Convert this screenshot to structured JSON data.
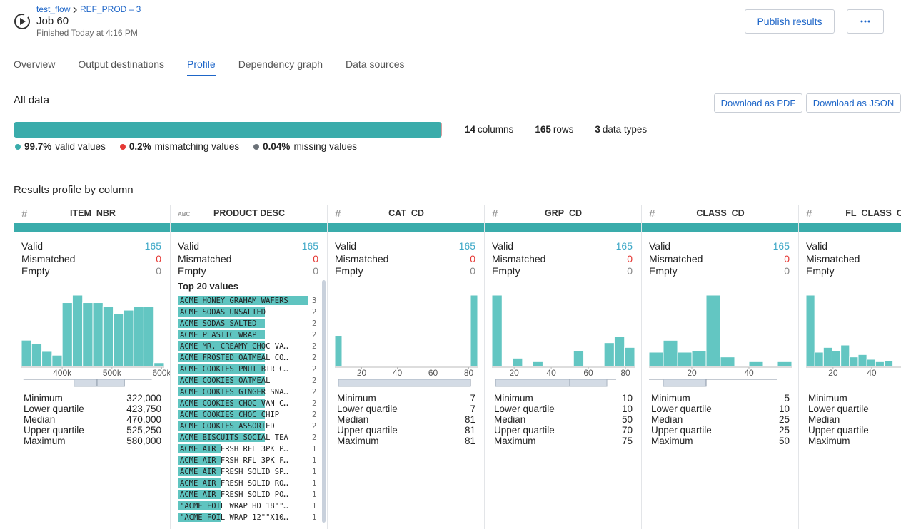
{
  "header": {
    "breadcrumb": [
      "test_flow",
      "REF_PROD – 3"
    ],
    "title": "Job 60",
    "subtitle": "Finished Today at 4:16 PM",
    "publish_button": "Publish results"
  },
  "tabs": {
    "items": [
      "Overview",
      "Output destinations",
      "Profile",
      "Dependency graph",
      "Data sources"
    ],
    "active": 2
  },
  "all_data": {
    "title": "All data",
    "buttons": [
      "Download as PDF",
      "Download as JSON"
    ],
    "quality": [
      {
        "value": 99.7,
        "label": "99.7%",
        "text": "valid values",
        "color": "#3aacab"
      },
      {
        "value": 0.2,
        "label": "0.2%",
        "text": "mismatching values",
        "color": "#e53935"
      },
      {
        "value": 0.04,
        "label": "0.04%",
        "text": "missing values",
        "color": "#6b7178"
      }
    ],
    "counts": [
      {
        "value": 14,
        "text": "columns"
      },
      {
        "value": 165,
        "text": "rows"
      },
      {
        "value": 3,
        "text": "data types"
      }
    ]
  },
  "profile": {
    "title": "Results profile by column",
    "columns": [
      {
        "name": "ITEM_NBR",
        "type_icon": "#",
        "quality": [
          {
            "label": "Valid",
            "value": 165
          },
          {
            "label": "Mismatched",
            "value": 0
          },
          {
            "label": "Empty",
            "value": 0
          }
        ],
        "histogram": {
          "xlim": [
            318000,
            605000
          ],
          "xticks": [
            {
              "value": 400000,
              "label": "400k"
            },
            {
              "value": 500000,
              "label": "500k"
            },
            {
              "value": 600000,
              "label": "600k"
            }
          ],
          "bins": [
            318000,
            338500,
            359000,
            379500,
            400000,
            420500,
            441000,
            461500,
            482000,
            502500,
            523000,
            543500,
            564000,
            584500,
            605000
          ],
          "counts": [
            7,
            6,
            4,
            3,
            17,
            19,
            17,
            17,
            16,
            14,
            15,
            16,
            16,
            1
          ]
        },
        "stats": {
          "labels": [
            "Minimum",
            "Lower quartile",
            "Median",
            "Upper quartile",
            "Maximum"
          ],
          "values": [
            {
              "value": 322000,
              "label": "322,000"
            },
            {
              "value": 423750,
              "label": "423,750"
            },
            {
              "value": 470000,
              "label": "470,000"
            },
            {
              "value": 525250,
              "label": "525,250"
            },
            {
              "value": 580000,
              "label": "580,000"
            }
          ]
        }
      },
      {
        "name": "PRODUCT DESC",
        "type_icon": "ABC",
        "quality": [
          {
            "label": "Valid",
            "value": 165
          },
          {
            "label": "Mismatched",
            "value": 0
          },
          {
            "label": "Empty",
            "value": 0
          }
        ],
        "top_values": {
          "title": "Top 20 values",
          "items": [
            {
              "text": "ACME HONEY GRAHAM WAFERS",
              "count": 3
            },
            {
              "text": "ACME SODAS UNSALTED",
              "count": 2
            },
            {
              "text": "ACME SODAS SALTED",
              "count": 2
            },
            {
              "text": "ACME PLASTIC WRAP",
              "count": 2
            },
            {
              "text": "ACME MR. CREAMY CHOC VA…",
              "count": 2
            },
            {
              "text": "ACME FROSTED OATMEAL CO…",
              "count": 2
            },
            {
              "text": "ACME COOKIES PNUT BTR C…",
              "count": 2
            },
            {
              "text": "ACME COOKIES OATMEAL",
              "count": 2
            },
            {
              "text": "ACME COOKIES GINGER SNA…",
              "count": 2
            },
            {
              "text": "ACME COOKIES CHOC VAN C…",
              "count": 2
            },
            {
              "text": "ACME COOKIES CHOC CHIP",
              "count": 2
            },
            {
              "text": "ACME COOKIES ASSORTED",
              "count": 2
            },
            {
              "text": "ACME BISCUITS SOCIAL TEA",
              "count": 2
            },
            {
              "text": "ACME AIR FRSH RFL 3PK P…",
              "count": 1
            },
            {
              "text": "ACME AIR FRSH RFL 3PK F…",
              "count": 1
            },
            {
              "text": "ACME AIR FRESH SOLID SP…",
              "count": 1
            },
            {
              "text": "ACME AIR FRESH SOLID RO…",
              "count": 1
            },
            {
              "text": "ACME AIR FRESH SOLID PO…",
              "count": 1
            },
            {
              "text": "\"ACME FOIL WRAP HD 18\"\"…",
              "count": 1
            },
            {
              "text": "\"ACME FOIL WRAP 12\"\"X10…",
              "count": 1
            }
          ]
        }
      },
      {
        "name": "CAT_CD",
        "type_icon": "#",
        "quality": [
          {
            "label": "Valid",
            "value": 165
          },
          {
            "label": "Mismatched",
            "value": 0
          },
          {
            "label": "Empty",
            "value": 0
          }
        ],
        "histogram": {
          "xlim": [
            5,
            85
          ],
          "xticks": [
            20,
            40,
            60,
            80
          ],
          "bins": [
            5,
            9,
            13,
            17,
            21,
            25,
            29,
            33,
            37,
            41,
            45,
            49,
            53,
            57,
            61,
            65,
            69,
            73,
            77,
            81,
            85
          ],
          "counts": [
            50,
            0,
            0,
            0,
            0,
            0,
            0,
            0,
            0,
            0,
            0,
            0,
            0,
            0,
            0,
            0,
            0,
            0,
            0,
            115
          ]
        },
        "stats": {
          "labels": [
            "Minimum",
            "Lower quartile",
            "Median",
            "Upper quartile",
            "Maximum"
          ],
          "values": [
            7,
            7,
            81,
            81,
            81
          ]
        }
      },
      {
        "name": "GRP_CD",
        "type_icon": "#",
        "quality": [
          {
            "label": "Valid",
            "value": 165
          },
          {
            "label": "Mismatched",
            "value": 0
          },
          {
            "label": "Empty",
            "value": 0
          }
        ],
        "histogram": {
          "xlim": [
            8,
            85
          ],
          "xticks": [
            20,
            40,
            60,
            80
          ],
          "bins": [
            8,
            13.5,
            19,
            24.5,
            30,
            35.5,
            41,
            46.5,
            52,
            57.5,
            63,
            68.5,
            74,
            79.5,
            85
          ],
          "counts": [
            60,
            0,
            7,
            0,
            4,
            0,
            0,
            0,
            13,
            0,
            0,
            20,
            25,
            16
          ]
        },
        "stats": {
          "labels": [
            "Minimum",
            "Lower quartile",
            "Median",
            "Upper quartile",
            "Maximum"
          ],
          "values": [
            10,
            10,
            50,
            70,
            75
          ]
        }
      },
      {
        "name": "CLASS_CD",
        "type_icon": "#",
        "quality": [
          {
            "label": "Valid",
            "value": 165
          },
          {
            "label": "Mismatched",
            "value": 0
          },
          {
            "label": "Empty",
            "value": 0
          }
        ],
        "histogram": {
          "xlim": [
            5,
            55
          ],
          "xticks": [
            20,
            40
          ],
          "bins": [
            5,
            10,
            15,
            20,
            25,
            30,
            35,
            40,
            45,
            50,
            55
          ],
          "counts": [
            12,
            22,
            12,
            13,
            60,
            8,
            0,
            4,
            0,
            4
          ]
        },
        "stats": {
          "labels": [
            "Minimum",
            "Lower quartile",
            "Median",
            "Upper quartile",
            "Maximum"
          ],
          "values": [
            5,
            10,
            25,
            25,
            50
          ]
        }
      },
      {
        "name": "FL_CLASS_CD",
        "type_icon": "#",
        "quality": [
          {
            "label": "Valid"
          },
          {
            "label": "Mismatched"
          },
          {
            "label": "Empty"
          }
        ],
        "histogram": {
          "xlim": [
            6,
            80
          ],
          "xticks": [
            20,
            40
          ],
          "bins": [
            6,
            10.5,
            15,
            19.5,
            24,
            28.5,
            33,
            37.5,
            42,
            46.5,
            51
          ],
          "counts": [
            60,
            12,
            16,
            13,
            18,
            8,
            10,
            6,
            4,
            5
          ]
        },
        "stats": {
          "labels": [
            "Minimum",
            "Lower quartile",
            "Median",
            "Upper quartile",
            "Maximum"
          ]
        }
      }
    ]
  }
}
